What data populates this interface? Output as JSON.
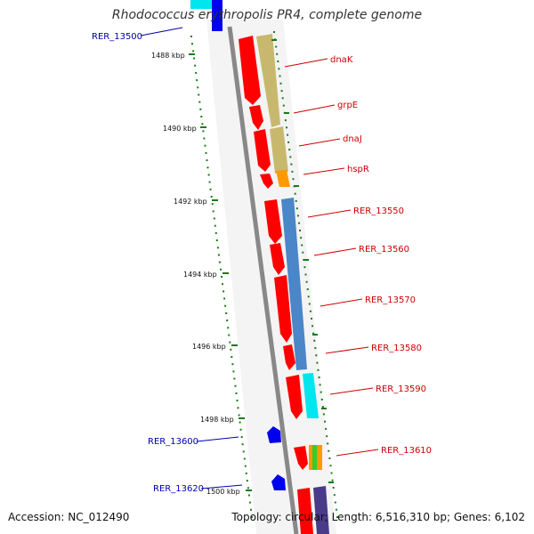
{
  "title": "Rhodococcus erythropolis PR4, complete genome",
  "footer": {
    "accession": "Accession: NC_012490",
    "summary": "Topology: circular; Length: 6,516,310 bp; Genes: 6,102"
  },
  "colors": {
    "forward_gene": "#ff0000",
    "reverse_gene": "#0000ee",
    "label_forward": "#cc0000",
    "label_reverse": "#0000aa",
    "ruler": "#1a7a1a",
    "backbone": "#888888"
  },
  "ruler_labels": [
    "1488 kbp",
    "1490 kbp",
    "1492 kbp",
    "1494 kbp",
    "1496 kbp",
    "1498 kbp",
    "1500 kbp"
  ],
  "genes_right": [
    {
      "name": "dnaK",
      "strand": "+"
    },
    {
      "name": "grpE",
      "strand": "+"
    },
    {
      "name": "dnaJ",
      "strand": "+"
    },
    {
      "name": "hspR",
      "strand": "+"
    },
    {
      "name": "RER_13550",
      "strand": "+"
    },
    {
      "name": "RER_13560",
      "strand": "+"
    },
    {
      "name": "RER_13570",
      "strand": "+"
    },
    {
      "name": "RER_13580",
      "strand": "+"
    },
    {
      "name": "RER_13590",
      "strand": "+"
    },
    {
      "name": "RER_13610",
      "strand": "+"
    }
  ],
  "genes_left": [
    {
      "name": "RER_13500",
      "strand": "-"
    },
    {
      "name": "RER_13600",
      "strand": "-"
    },
    {
      "name": "RER_13620",
      "strand": "-"
    }
  ]
}
